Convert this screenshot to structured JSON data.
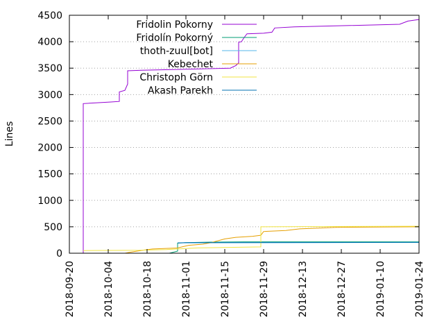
{
  "chart_data": {
    "type": "line",
    "title": "",
    "xlabel": "",
    "ylabel": "Lines",
    "xlim": [
      "2018-09-20",
      "2019-01-24"
    ],
    "ylim": [
      0,
      4500
    ],
    "x_ticks": [
      "2018-09-20",
      "2018-10-04",
      "2018-10-18",
      "2018-11-01",
      "2018-11-15",
      "2018-11-29",
      "2018-12-13",
      "2018-12-27",
      "2019-01-10",
      "2019-01-24"
    ],
    "y_ticks": [
      0,
      500,
      1000,
      1500,
      2000,
      2500,
      3000,
      3500,
      4000,
      4500
    ],
    "grid": "dotted horizontal lines at y ticks",
    "legend_position": "top-right",
    "series": [
      {
        "name": "Fridolin Pokorny",
        "color": "#9400d3",
        "points": [
          [
            "2018-09-25",
            0
          ],
          [
            "2018-09-25",
            2830
          ],
          [
            "2018-10-05",
            2860
          ],
          [
            "2018-10-08",
            2870
          ],
          [
            "2018-10-08",
            3050
          ],
          [
            "2018-10-10",
            3080
          ],
          [
            "2018-10-11",
            3200
          ],
          [
            "2018-10-11",
            3450
          ],
          [
            "2018-10-16",
            3460
          ],
          [
            "2018-11-17",
            3500
          ],
          [
            "2018-11-19",
            3550
          ],
          [
            "2018-11-20",
            3600
          ],
          [
            "2018-11-20",
            3990
          ],
          [
            "2018-11-21",
            4000
          ],
          [
            "2018-11-22",
            4080
          ],
          [
            "2018-11-23",
            4150
          ],
          [
            "2018-11-29",
            4160
          ],
          [
            "2018-12-02",
            4180
          ],
          [
            "2018-12-03",
            4260
          ],
          [
            "2018-12-10",
            4280
          ],
          [
            "2019-01-17",
            4330
          ],
          [
            "2019-01-20",
            4390
          ],
          [
            "2019-01-24",
            4420
          ]
        ]
      },
      {
        "name": "Fridolín Pokorný",
        "color": "#009e73",
        "points": [
          [
            "2018-10-26",
            0
          ],
          [
            "2018-10-29",
            40
          ],
          [
            "2018-10-29",
            190
          ],
          [
            "2018-11-01",
            200
          ],
          [
            "2018-11-10",
            210
          ],
          [
            "2018-11-22",
            215
          ],
          [
            "2019-01-24",
            215
          ]
        ]
      },
      {
        "name": "thoth-zuul[bot]",
        "color": "#56b4e9",
        "points": [
          [
            "2018-10-29",
            195
          ],
          [
            "2019-01-24",
            205
          ]
        ]
      },
      {
        "name": "Kebechet",
        "color": "#e69f00",
        "points": [
          [
            "2018-10-10",
            0
          ],
          [
            "2018-10-12",
            20
          ],
          [
            "2018-10-17",
            60
          ],
          [
            "2018-10-20",
            80
          ],
          [
            "2018-10-29",
            100
          ],
          [
            "2018-11-02",
            150
          ],
          [
            "2018-11-07",
            170
          ],
          [
            "2018-11-10",
            200
          ],
          [
            "2018-11-15",
            270
          ],
          [
            "2018-11-19",
            300
          ],
          [
            "2018-11-25",
            320
          ],
          [
            "2018-11-28",
            340
          ],
          [
            "2018-11-29",
            410
          ],
          [
            "2018-12-07",
            430
          ],
          [
            "2018-12-12",
            460
          ],
          [
            "2018-12-25",
            490
          ],
          [
            "2019-01-24",
            500
          ],
          [
            "2019-01-24",
            570
          ]
        ]
      },
      {
        "name": "Christoph Görn",
        "color": "#f0e442",
        "points": [
          [
            "2018-09-25",
            50
          ],
          [
            "2018-10-15",
            55
          ],
          [
            "2018-10-25",
            70
          ],
          [
            "2018-11-05",
            100
          ],
          [
            "2018-11-28",
            120
          ],
          [
            "2018-11-28",
            500
          ],
          [
            "2019-01-24",
            510
          ]
        ]
      },
      {
        "name": "Akash Parekh",
        "color": "#0072b2",
        "points": [
          [
            "2018-10-29",
            195
          ],
          [
            "2018-11-01",
            200
          ],
          [
            "2019-01-24",
            205
          ]
        ]
      }
    ]
  }
}
